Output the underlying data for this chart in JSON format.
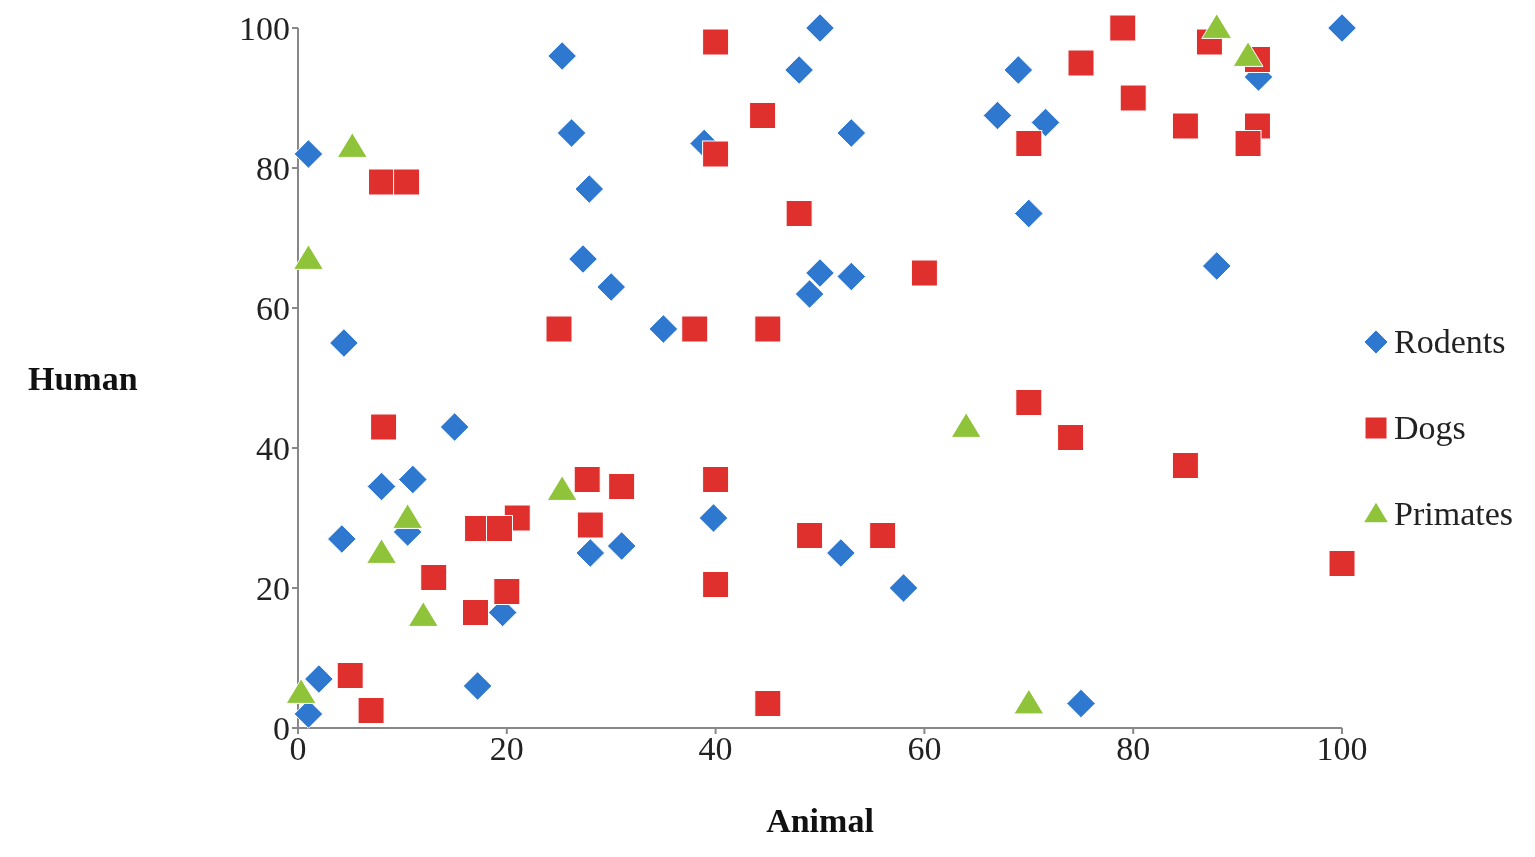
{
  "chart_data": {
    "type": "scatter",
    "xlabel": "Animal",
    "ylabel": "Human",
    "xlim": [
      0,
      100
    ],
    "ylim": [
      0,
      100
    ],
    "xticks": [
      0,
      20,
      40,
      60,
      80,
      100
    ],
    "yticks": [
      0,
      20,
      40,
      60,
      80,
      100
    ],
    "grid": false,
    "legend": "right",
    "series": [
      {
        "name": "Rodents",
        "color": "#2f78d0",
        "marker": "diamond",
        "x": [
          1,
          4.4,
          4.2,
          2,
          1,
          8,
          11,
          10.5,
          15,
          17.2,
          19.6,
          25.3,
          26.2,
          27.9,
          27.3,
          30,
          28,
          31,
          35,
          38.9,
          39.8,
          48,
          50,
          49,
          50,
          53,
          53,
          52,
          58,
          67,
          69,
          71.6,
          70,
          75,
          88,
          92,
          100
        ],
        "values": [
          82,
          55,
          27,
          7,
          2,
          34.5,
          35.5,
          28,
          43,
          6,
          16.5,
          96,
          85,
          77,
          67,
          63,
          25,
          26,
          57,
          83.5,
          30,
          94,
          100,
          62,
          65,
          64.5,
          85,
          25,
          20,
          87.5,
          94,
          86.5,
          73.5,
          3.5,
          66,
          93,
          100
        ]
      },
      {
        "name": "Dogs",
        "color": "#e0302e",
        "marker": "square",
        "x": [
          40,
          44.5,
          40,
          8,
          10.4,
          48,
          25,
          38,
          45,
          60,
          8.2,
          27.7,
          31,
          40,
          21,
          28,
          17.2,
          19.3,
          13,
          20,
          17,
          40,
          49,
          56,
          5,
          7,
          45,
          75,
          79,
          80,
          85,
          87.3,
          91.9,
          91.9,
          91,
          70,
          70,
          74,
          85,
          100
        ],
        "values": [
          98,
          87.5,
          82,
          78,
          78,
          73.5,
          57,
          57,
          57,
          65,
          43,
          35.5,
          34.5,
          35.5,
          30,
          29,
          28.5,
          28.5,
          21.5,
          19.5,
          16.5,
          20.5,
          27.5,
          27.5,
          7.5,
          2.5,
          3.5,
          95,
          100,
          90,
          86,
          98,
          95.5,
          86,
          83.5,
          83.5,
          46.5,
          41.5,
          37.5,
          23.5
        ]
      },
      {
        "name": "Primates",
        "color": "#8fc43a",
        "marker": "triangle",
        "x": [
          5.2,
          1,
          25.3,
          10.5,
          8,
          12,
          0.3,
          64,
          70,
          88,
          91
        ],
        "values": [
          83,
          67,
          34,
          30,
          25,
          16,
          5,
          43,
          3.5,
          100,
          96
        ]
      }
    ]
  }
}
